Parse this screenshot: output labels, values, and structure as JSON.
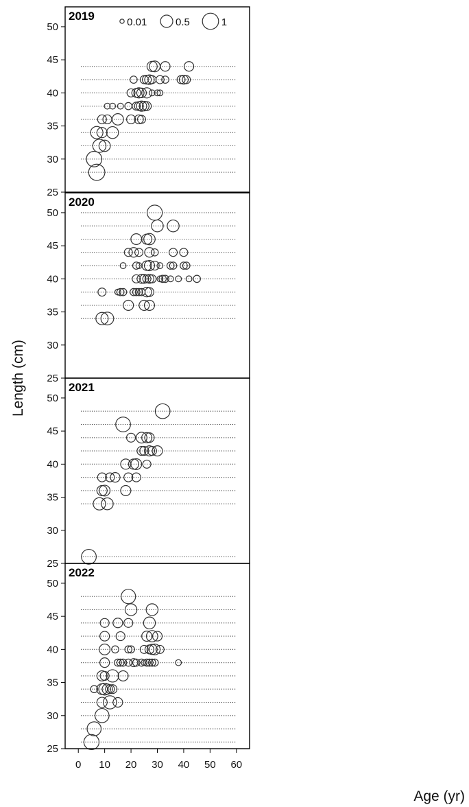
{
  "chart_data": {
    "type": "scatter",
    "xlabel": "Age (yr)",
    "ylabel": "Length (cm)",
    "xlim": [
      -5,
      65
    ],
    "ylim": [
      25,
      53
    ],
    "x_ticks": [
      "0",
      "10",
      "20",
      "30",
      "40",
      "50",
      "60"
    ],
    "y_ticks": [
      "25",
      "30",
      "35",
      "40",
      "45",
      "50"
    ],
    "bubble_legend": [
      {
        "label": "0.01",
        "value": 0.01
      },
      {
        "label": "0.5",
        "value": 0.5
      },
      {
        "label": "1",
        "value": 1
      }
    ],
    "line_range": [
      1,
      60
    ],
    "panels": [
      {
        "label": "2019",
        "lengths": [
          28,
          30,
          32,
          34,
          36,
          38,
          40,
          42,
          44
        ],
        "points": [
          {
            "x": 7,
            "y": 28,
            "s": 1.0
          },
          {
            "x": 6,
            "y": 30,
            "s": 0.9
          },
          {
            "x": 8,
            "y": 32,
            "s": 0.6
          },
          {
            "x": 10,
            "y": 32,
            "s": 0.4
          },
          {
            "x": 7,
            "y": 34,
            "s": 0.5
          },
          {
            "x": 9,
            "y": 34,
            "s": 0.3
          },
          {
            "x": 13,
            "y": 34,
            "s": 0.45
          },
          {
            "x": 9,
            "y": 36,
            "s": 0.2
          },
          {
            "x": 11,
            "y": 36,
            "s": 0.2
          },
          {
            "x": 15,
            "y": 36,
            "s": 0.4
          },
          {
            "x": 20,
            "y": 36,
            "s": 0.2
          },
          {
            "x": 23,
            "y": 36,
            "s": 0.2
          },
          {
            "x": 24,
            "y": 36,
            "s": 0.15
          },
          {
            "x": 11,
            "y": 38,
            "s": 0.05
          },
          {
            "x": 13,
            "y": 38,
            "s": 0.05
          },
          {
            "x": 16,
            "y": 38,
            "s": 0.05
          },
          {
            "x": 19,
            "y": 38,
            "s": 0.1
          },
          {
            "x": 22,
            "y": 38,
            "s": 0.15
          },
          {
            "x": 23,
            "y": 38,
            "s": 0.2
          },
          {
            "x": 24,
            "y": 38,
            "s": 0.3
          },
          {
            "x": 25,
            "y": 38,
            "s": 0.25
          },
          {
            "x": 26,
            "y": 38,
            "s": 0.2
          },
          {
            "x": 20,
            "y": 40,
            "s": 0.15
          },
          {
            "x": 22,
            "y": 40,
            "s": 0.2
          },
          {
            "x": 23,
            "y": 40,
            "s": 0.3
          },
          {
            "x": 24,
            "y": 40,
            "s": 0.25
          },
          {
            "x": 26,
            "y": 40,
            "s": 0.3
          },
          {
            "x": 28,
            "y": 40,
            "s": 0.05
          },
          {
            "x": 30,
            "y": 40,
            "s": 0.05
          },
          {
            "x": 31,
            "y": 40,
            "s": 0.05
          },
          {
            "x": 21,
            "y": 42,
            "s": 0.1
          },
          {
            "x": 25,
            "y": 42,
            "s": 0.15
          },
          {
            "x": 26,
            "y": 42,
            "s": 0.2
          },
          {
            "x": 27,
            "y": 42,
            "s": 0.25
          },
          {
            "x": 28,
            "y": 42,
            "s": 0.15
          },
          {
            "x": 31,
            "y": 42,
            "s": 0.15
          },
          {
            "x": 33,
            "y": 42,
            "s": 0.1
          },
          {
            "x": 39,
            "y": 42,
            "s": 0.15
          },
          {
            "x": 40,
            "y": 42,
            "s": 0.2
          },
          {
            "x": 41,
            "y": 42,
            "s": 0.15
          },
          {
            "x": 28,
            "y": 44,
            "s": 0.3
          },
          {
            "x": 29,
            "y": 44,
            "s": 0.35
          },
          {
            "x": 33,
            "y": 44,
            "s": 0.25
          },
          {
            "x": 42,
            "y": 44,
            "s": 0.25
          }
        ]
      },
      {
        "label": "2020",
        "lengths": [
          34,
          36,
          38,
          40,
          42,
          44,
          46,
          48,
          50
        ],
        "points": [
          {
            "x": 9,
            "y": 34,
            "s": 0.5
          },
          {
            "x": 11,
            "y": 34,
            "s": 0.55
          },
          {
            "x": 19,
            "y": 36,
            "s": 0.3
          },
          {
            "x": 25,
            "y": 36,
            "s": 0.3
          },
          {
            "x": 27,
            "y": 36,
            "s": 0.3
          },
          {
            "x": 9,
            "y": 38,
            "s": 0.15
          },
          {
            "x": 15,
            "y": 38,
            "s": 0.05
          },
          {
            "x": 16,
            "y": 38,
            "s": 0.1
          },
          {
            "x": 17,
            "y": 38,
            "s": 0.1
          },
          {
            "x": 21,
            "y": 38,
            "s": 0.1
          },
          {
            "x": 22,
            "y": 38,
            "s": 0.1
          },
          {
            "x": 23,
            "y": 38,
            "s": 0.1
          },
          {
            "x": 24,
            "y": 38,
            "s": 0.1
          },
          {
            "x": 26,
            "y": 38,
            "s": 0.25
          },
          {
            "x": 27,
            "y": 38,
            "s": 0.2
          },
          {
            "x": 22,
            "y": 40,
            "s": 0.15
          },
          {
            "x": 24,
            "y": 40,
            "s": 0.2
          },
          {
            "x": 25,
            "y": 40,
            "s": 0.2
          },
          {
            "x": 26,
            "y": 40,
            "s": 0.15
          },
          {
            "x": 27,
            "y": 40,
            "s": 0.2
          },
          {
            "x": 28,
            "y": 40,
            "s": 0.15
          },
          {
            "x": 31,
            "y": 40,
            "s": 0.05
          },
          {
            "x": 32,
            "y": 40,
            "s": 0.1
          },
          {
            "x": 33,
            "y": 40,
            "s": 0.1
          },
          {
            "x": 35,
            "y": 40,
            "s": 0.05
          },
          {
            "x": 38,
            "y": 40,
            "s": 0.05
          },
          {
            "x": 42,
            "y": 40,
            "s": 0.05
          },
          {
            "x": 45,
            "y": 40,
            "s": 0.1
          },
          {
            "x": 17,
            "y": 42,
            "s": 0.05
          },
          {
            "x": 22,
            "y": 42,
            "s": 0.1
          },
          {
            "x": 23,
            "y": 42,
            "s": 0.05
          },
          {
            "x": 26,
            "y": 42,
            "s": 0.25
          },
          {
            "x": 27,
            "y": 42,
            "s": 0.3
          },
          {
            "x": 29,
            "y": 42,
            "s": 0.2
          },
          {
            "x": 31,
            "y": 42,
            "s": 0.05
          },
          {
            "x": 35,
            "y": 42,
            "s": 0.1
          },
          {
            "x": 36,
            "y": 42,
            "s": 0.1
          },
          {
            "x": 40,
            "y": 42,
            "s": 0.1
          },
          {
            "x": 41,
            "y": 42,
            "s": 0.1
          },
          {
            "x": 19,
            "y": 44,
            "s": 0.15
          },
          {
            "x": 21,
            "y": 44,
            "s": 0.25
          },
          {
            "x": 23,
            "y": 44,
            "s": 0.15
          },
          {
            "x": 27,
            "y": 44,
            "s": 0.25
          },
          {
            "x": 29,
            "y": 44,
            "s": 0.1
          },
          {
            "x": 36,
            "y": 44,
            "s": 0.15
          },
          {
            "x": 40,
            "y": 44,
            "s": 0.15
          },
          {
            "x": 22,
            "y": 46,
            "s": 0.35
          },
          {
            "x": 26,
            "y": 46,
            "s": 0.3
          },
          {
            "x": 27,
            "y": 46,
            "s": 0.4
          },
          {
            "x": 30,
            "y": 48,
            "s": 0.45
          },
          {
            "x": 36,
            "y": 48,
            "s": 0.45
          },
          {
            "x": 29,
            "y": 50,
            "s": 0.85
          }
        ]
      },
      {
        "label": "2021",
        "lengths": [
          26,
          34,
          36,
          38,
          40,
          42,
          44,
          46,
          48
        ],
        "points": [
          {
            "x": 4,
            "y": 26,
            "s": 0.8
          },
          {
            "x": 8,
            "y": 34,
            "s": 0.5
          },
          {
            "x": 11,
            "y": 34,
            "s": 0.45
          },
          {
            "x": 9,
            "y": 36,
            "s": 0.3
          },
          {
            "x": 10,
            "y": 36,
            "s": 0.35
          },
          {
            "x": 18,
            "y": 36,
            "s": 0.3
          },
          {
            "x": 9,
            "y": 38,
            "s": 0.2
          },
          {
            "x": 12,
            "y": 38,
            "s": 0.2
          },
          {
            "x": 14,
            "y": 38,
            "s": 0.25
          },
          {
            "x": 19,
            "y": 38,
            "s": 0.2
          },
          {
            "x": 22,
            "y": 38,
            "s": 0.2
          },
          {
            "x": 18,
            "y": 40,
            "s": 0.3
          },
          {
            "x": 21,
            "y": 40,
            "s": 0.3
          },
          {
            "x": 22,
            "y": 40,
            "s": 0.35
          },
          {
            "x": 26,
            "y": 40,
            "s": 0.15
          },
          {
            "x": 24,
            "y": 42,
            "s": 0.2
          },
          {
            "x": 25,
            "y": 42,
            "s": 0.2
          },
          {
            "x": 27,
            "y": 42,
            "s": 0.3
          },
          {
            "x": 28,
            "y": 42,
            "s": 0.2
          },
          {
            "x": 30,
            "y": 42,
            "s": 0.3
          },
          {
            "x": 20,
            "y": 44,
            "s": 0.2
          },
          {
            "x": 24,
            "y": 44,
            "s": 0.35
          },
          {
            "x": 26,
            "y": 44,
            "s": 0.3
          },
          {
            "x": 27,
            "y": 44,
            "s": 0.25
          },
          {
            "x": 17,
            "y": 46,
            "s": 0.8
          },
          {
            "x": 32,
            "y": 48,
            "s": 0.8
          }
        ]
      },
      {
        "label": "2022",
        "lengths": [
          26,
          28,
          30,
          32,
          34,
          36,
          38,
          40,
          42,
          44,
          46,
          48
        ],
        "points": [
          {
            "x": 5,
            "y": 26,
            "s": 0.85
          },
          {
            "x": 6,
            "y": 28,
            "s": 0.7
          },
          {
            "x": 9,
            "y": 30,
            "s": 0.7
          },
          {
            "x": 9,
            "y": 32,
            "s": 0.3
          },
          {
            "x": 12,
            "y": 32,
            "s": 0.6
          },
          {
            "x": 15,
            "y": 32,
            "s": 0.25
          },
          {
            "x": 6,
            "y": 34,
            "s": 0.1
          },
          {
            "x": 9,
            "y": 34,
            "s": 0.35
          },
          {
            "x": 10,
            "y": 34,
            "s": 0.45
          },
          {
            "x": 11,
            "y": 34,
            "s": 0.3
          },
          {
            "x": 12,
            "y": 34,
            "s": 0.2
          },
          {
            "x": 13,
            "y": 34,
            "s": 0.2
          },
          {
            "x": 9,
            "y": 36,
            "s": 0.3
          },
          {
            "x": 10,
            "y": 36,
            "s": 0.2
          },
          {
            "x": 13,
            "y": 36,
            "s": 0.5
          },
          {
            "x": 17,
            "y": 36,
            "s": 0.3
          },
          {
            "x": 10,
            "y": 38,
            "s": 0.25
          },
          {
            "x": 15,
            "y": 38,
            "s": 0.1
          },
          {
            "x": 16,
            "y": 38,
            "s": 0.1
          },
          {
            "x": 17,
            "y": 38,
            "s": 0.1
          },
          {
            "x": 19,
            "y": 38,
            "s": 0.1
          },
          {
            "x": 21,
            "y": 38,
            "s": 0.15
          },
          {
            "x": 22,
            "y": 38,
            "s": 0.1
          },
          {
            "x": 24,
            "y": 38,
            "s": 0.1
          },
          {
            "x": 25,
            "y": 38,
            "s": 0.05
          },
          {
            "x": 26,
            "y": 38,
            "s": 0.1
          },
          {
            "x": 27,
            "y": 38,
            "s": 0.1
          },
          {
            "x": 28,
            "y": 38,
            "s": 0.1
          },
          {
            "x": 29,
            "y": 38,
            "s": 0.1
          },
          {
            "x": 38,
            "y": 38,
            "s": 0.05
          },
          {
            "x": 10,
            "y": 40,
            "s": 0.35
          },
          {
            "x": 14,
            "y": 40,
            "s": 0.1
          },
          {
            "x": 19,
            "y": 40,
            "s": 0.1
          },
          {
            "x": 20,
            "y": 40,
            "s": 0.1
          },
          {
            "x": 25,
            "y": 40,
            "s": 0.15
          },
          {
            "x": 27,
            "y": 40,
            "s": 0.2
          },
          {
            "x": 28,
            "y": 40,
            "s": 0.3
          },
          {
            "x": 29,
            "y": 40,
            "s": 0.35
          },
          {
            "x": 31,
            "y": 40,
            "s": 0.15
          },
          {
            "x": 10,
            "y": 42,
            "s": 0.25
          },
          {
            "x": 16,
            "y": 42,
            "s": 0.2
          },
          {
            "x": 26,
            "y": 42,
            "s": 0.3
          },
          {
            "x": 28,
            "y": 42,
            "s": 0.4
          },
          {
            "x": 30,
            "y": 42,
            "s": 0.25
          },
          {
            "x": 10,
            "y": 44,
            "s": 0.2
          },
          {
            "x": 15,
            "y": 44,
            "s": 0.25
          },
          {
            "x": 19,
            "y": 44,
            "s": 0.2
          },
          {
            "x": 27,
            "y": 44,
            "s": 0.45
          },
          {
            "x": 20,
            "y": 46,
            "s": 0.45
          },
          {
            "x": 28,
            "y": 46,
            "s": 0.45
          },
          {
            "x": 19,
            "y": 48,
            "s": 0.75
          }
        ]
      }
    ]
  }
}
